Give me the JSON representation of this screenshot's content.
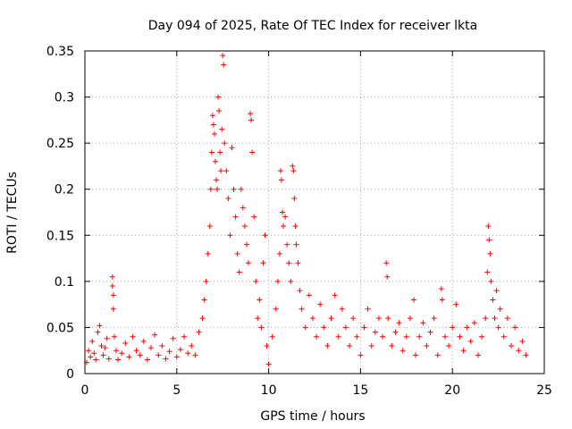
{
  "chart_data": {
    "type": "scatter",
    "title": "Day 094 of 2025, Rate Of TEC Index for receiver lkta",
    "xlabel": "GPS time / hours",
    "ylabel": "ROTI / TECUs",
    "xlim": [
      0,
      25
    ],
    "ylim": [
      0,
      0.35
    ],
    "xticks": [
      0,
      5,
      10,
      15,
      20,
      25
    ],
    "xtick_labels": [
      "0",
      "5",
      "10",
      "15",
      "20",
      "25"
    ],
    "yticks": [
      0,
      0.05,
      0.1,
      0.15,
      0.2,
      0.25,
      0.3,
      0.35
    ],
    "ytick_labels": [
      "0",
      "0.05",
      "0.1",
      "0.15",
      "0.2",
      "0.25",
      "0.3",
      "0.35"
    ],
    "grid": true,
    "marker": "plus",
    "color": "#ff0000",
    "series": [
      {
        "name": "ROTI",
        "points": [
          [
            0.1,
            0.012
          ],
          [
            0.2,
            0.025
          ],
          [
            0.3,
            0.018
          ],
          [
            0.4,
            0.035
          ],
          [
            0.5,
            0.022
          ],
          [
            0.6,
            0.015
          ],
          [
            0.7,
            0.045
          ],
          [
            0.8,
            0.052
          ],
          [
            0.9,
            0.03
          ],
          [
            1.0,
            0.02
          ],
          [
            1.1,
            0.028
          ],
          [
            1.2,
            0.038
          ],
          [
            1.3,
            0.016
          ],
          [
            1.5,
            0.105
          ],
          [
            1.5,
            0.095
          ],
          [
            1.55,
            0.085
          ],
          [
            1.55,
            0.07
          ],
          [
            1.6,
            0.04
          ],
          [
            1.7,
            0.025
          ],
          [
            1.8,
            0.015
          ],
          [
            2.0,
            0.022
          ],
          [
            2.2,
            0.033
          ],
          [
            2.4,
            0.018
          ],
          [
            2.6,
            0.04
          ],
          [
            2.8,
            0.025
          ],
          [
            3.0,
            0.02
          ],
          [
            3.2,
            0.035
          ],
          [
            3.4,
            0.015
          ],
          [
            3.6,
            0.028
          ],
          [
            3.8,
            0.042
          ],
          [
            4.0,
            0.02
          ],
          [
            4.2,
            0.03
          ],
          [
            4.4,
            0.016
          ],
          [
            4.6,
            0.024
          ],
          [
            4.8,
            0.038
          ],
          [
            5.0,
            0.018
          ],
          [
            5.2,
            0.026
          ],
          [
            5.4,
            0.04
          ],
          [
            5.6,
            0.022
          ],
          [
            5.8,
            0.03
          ],
          [
            6.0,
            0.02
          ],
          [
            6.2,
            0.045
          ],
          [
            6.4,
            0.06
          ],
          [
            6.5,
            0.08
          ],
          [
            6.6,
            0.1
          ],
          [
            6.7,
            0.13
          ],
          [
            6.8,
            0.16
          ],
          [
            6.85,
            0.2
          ],
          [
            6.9,
            0.24
          ],
          [
            6.95,
            0.28
          ],
          [
            7.0,
            0.27
          ],
          [
            7.05,
            0.26
          ],
          [
            7.1,
            0.23
          ],
          [
            7.15,
            0.21
          ],
          [
            7.2,
            0.2
          ],
          [
            7.25,
            0.3
          ],
          [
            7.3,
            0.285
          ],
          [
            7.35,
            0.24
          ],
          [
            7.4,
            0.22
          ],
          [
            7.45,
            0.265
          ],
          [
            7.5,
            0.345
          ],
          [
            7.55,
            0.335
          ],
          [
            7.6,
            0.25
          ],
          [
            7.7,
            0.22
          ],
          [
            7.8,
            0.19
          ],
          [
            7.9,
            0.15
          ],
          [
            8.0,
            0.245
          ],
          [
            8.1,
            0.2
          ],
          [
            8.2,
            0.17
          ],
          [
            8.3,
            0.13
          ],
          [
            8.4,
            0.11
          ],
          [
            8.5,
            0.2
          ],
          [
            8.6,
            0.18
          ],
          [
            8.7,
            0.16
          ],
          [
            8.8,
            0.14
          ],
          [
            8.9,
            0.12
          ],
          [
            9.0,
            0.282
          ],
          [
            9.05,
            0.275
          ],
          [
            9.1,
            0.24
          ],
          [
            9.2,
            0.17
          ],
          [
            9.3,
            0.1
          ],
          [
            9.4,
            0.06
          ],
          [
            9.5,
            0.08
          ],
          [
            9.6,
            0.05
          ],
          [
            9.7,
            0.12
          ],
          [
            9.8,
            0.15
          ],
          [
            9.9,
            0.03
          ],
          [
            10.0,
            0.01
          ],
          [
            10.2,
            0.04
          ],
          [
            10.4,
            0.07
          ],
          [
            10.5,
            0.1
          ],
          [
            10.6,
            0.13
          ],
          [
            10.65,
            0.22
          ],
          [
            10.7,
            0.21
          ],
          [
            10.75,
            0.175
          ],
          [
            10.8,
            0.16
          ],
          [
            10.9,
            0.17
          ],
          [
            11.0,
            0.14
          ],
          [
            11.1,
            0.12
          ],
          [
            11.2,
            0.1
          ],
          [
            11.3,
            0.225
          ],
          [
            11.35,
            0.22
          ],
          [
            11.4,
            0.19
          ],
          [
            11.45,
            0.16
          ],
          [
            11.5,
            0.14
          ],
          [
            11.6,
            0.12
          ],
          [
            11.7,
            0.09
          ],
          [
            11.8,
            0.07
          ],
          [
            12.0,
            0.05
          ],
          [
            12.2,
            0.085
          ],
          [
            12.4,
            0.06
          ],
          [
            12.6,
            0.04
          ],
          [
            12.8,
            0.075
          ],
          [
            13.0,
            0.05
          ],
          [
            13.2,
            0.03
          ],
          [
            13.4,
            0.06
          ],
          [
            13.6,
            0.085
          ],
          [
            13.8,
            0.04
          ],
          [
            14.0,
            0.07
          ],
          [
            14.2,
            0.05
          ],
          [
            14.4,
            0.03
          ],
          [
            14.6,
            0.06
          ],
          [
            14.8,
            0.04
          ],
          [
            15.0,
            0.02
          ],
          [
            15.2,
            0.05
          ],
          [
            15.4,
            0.07
          ],
          [
            15.6,
            0.03
          ],
          [
            15.8,
            0.045
          ],
          [
            16.0,
            0.06
          ],
          [
            16.2,
            0.04
          ],
          [
            16.4,
            0.12
          ],
          [
            16.45,
            0.105
          ],
          [
            16.5,
            0.06
          ],
          [
            16.7,
            0.03
          ],
          [
            16.9,
            0.045
          ],
          [
            17.1,
            0.055
          ],
          [
            17.3,
            0.025
          ],
          [
            17.5,
            0.04
          ],
          [
            17.7,
            0.06
          ],
          [
            17.9,
            0.08
          ],
          [
            18.0,
            0.02
          ],
          [
            18.2,
            0.04
          ],
          [
            18.4,
            0.055
          ],
          [
            18.6,
            0.03
          ],
          [
            18.8,
            0.045
          ],
          [
            19.0,
            0.06
          ],
          [
            19.2,
            0.02
          ],
          [
            19.4,
            0.092
          ],
          [
            19.45,
            0.08
          ],
          [
            19.6,
            0.04
          ],
          [
            19.8,
            0.03
          ],
          [
            20.0,
            0.05
          ],
          [
            20.2,
            0.075
          ],
          [
            20.4,
            0.04
          ],
          [
            20.6,
            0.025
          ],
          [
            20.8,
            0.05
          ],
          [
            21.0,
            0.035
          ],
          [
            21.2,
            0.055
          ],
          [
            21.4,
            0.02
          ],
          [
            21.6,
            0.04
          ],
          [
            21.8,
            0.06
          ],
          [
            21.9,
            0.11
          ],
          [
            21.95,
            0.16
          ],
          [
            22.0,
            0.145
          ],
          [
            22.05,
            0.13
          ],
          [
            22.1,
            0.1
          ],
          [
            22.2,
            0.08
          ],
          [
            22.3,
            0.06
          ],
          [
            22.4,
            0.09
          ],
          [
            22.5,
            0.05
          ],
          [
            22.6,
            0.07
          ],
          [
            22.8,
            0.04
          ],
          [
            23.0,
            0.06
          ],
          [
            23.2,
            0.03
          ],
          [
            23.4,
            0.05
          ],
          [
            23.6,
            0.025
          ],
          [
            23.8,
            0.035
          ],
          [
            24.0,
            0.02
          ]
        ]
      }
    ]
  }
}
